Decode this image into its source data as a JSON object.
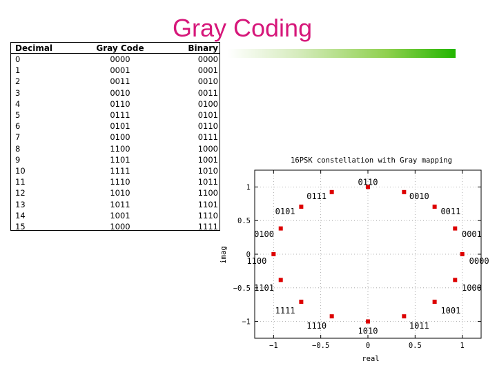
{
  "slide": {
    "title": "Gray Coding"
  },
  "table": {
    "headers": [
      "Decimal",
      "Gray Code",
      "Binary"
    ],
    "rows": [
      [
        "0",
        "0000",
        "0000"
      ],
      [
        "1",
        "0001",
        "0001"
      ],
      [
        "2",
        "0011",
        "0010"
      ],
      [
        "3",
        "0010",
        "0011"
      ],
      [
        "4",
        "0110",
        "0100"
      ],
      [
        "5",
        "0111",
        "0101"
      ],
      [
        "6",
        "0101",
        "0110"
      ],
      [
        "7",
        "0100",
        "0111"
      ],
      [
        "8",
        "1100",
        "1000"
      ],
      [
        "9",
        "1101",
        "1001"
      ],
      [
        "10",
        "1111",
        "1010"
      ],
      [
        "11",
        "1110",
        "1011"
      ],
      [
        "12",
        "1010",
        "1100"
      ],
      [
        "13",
        "1011",
        "1101"
      ],
      [
        "14",
        "1001",
        "1110"
      ],
      [
        "15",
        "1000",
        "1111"
      ]
    ]
  },
  "chart_data": {
    "type": "scatter",
    "title": "16PSK constellation with Gray mapping",
    "xlabel": "real",
    "ylabel": "imag",
    "xlim": [
      -1.2,
      1.2
    ],
    "ylim": [
      -1.25,
      1.25
    ],
    "xticks": [
      -1,
      -0.5,
      0,
      0.5,
      1
    ],
    "yticks": [
      1,
      0.5,
      0,
      -0.5,
      -1
    ],
    "xtick_labels": [
      "−1",
      "−0.5",
      "0",
      "0.5",
      "1"
    ],
    "ytick_labels": [
      "1",
      "0.5",
      "0",
      "−0.5",
      "−1"
    ],
    "marker_color": "#dd0000",
    "points": [
      {
        "x": 1.0,
        "y": 0.0,
        "label": "0000"
      },
      {
        "x": 0.924,
        "y": 0.383,
        "label": "0001"
      },
      {
        "x": 0.707,
        "y": 0.707,
        "label": "0011"
      },
      {
        "x": 0.383,
        "y": 0.924,
        "label": "0010"
      },
      {
        "x": 0.0,
        "y": 1.0,
        "label": "0110"
      },
      {
        "x": -0.383,
        "y": 0.924,
        "label": "0111"
      },
      {
        "x": -0.707,
        "y": 0.707,
        "label": "0101"
      },
      {
        "x": -0.924,
        "y": 0.383,
        "label": "0100"
      },
      {
        "x": -1.0,
        "y": 0.0,
        "label": "1100"
      },
      {
        "x": -0.924,
        "y": -0.383,
        "label": "1101"
      },
      {
        "x": -0.707,
        "y": -0.707,
        "label": "1111"
      },
      {
        "x": -0.383,
        "y": -0.924,
        "label": "1110"
      },
      {
        "x": 0.0,
        "y": -1.0,
        "label": "1010"
      },
      {
        "x": 0.383,
        "y": -0.924,
        "label": "1011"
      },
      {
        "x": 0.707,
        "y": -0.707,
        "label": "1001"
      },
      {
        "x": 0.924,
        "y": -0.383,
        "label": "1000"
      }
    ]
  }
}
